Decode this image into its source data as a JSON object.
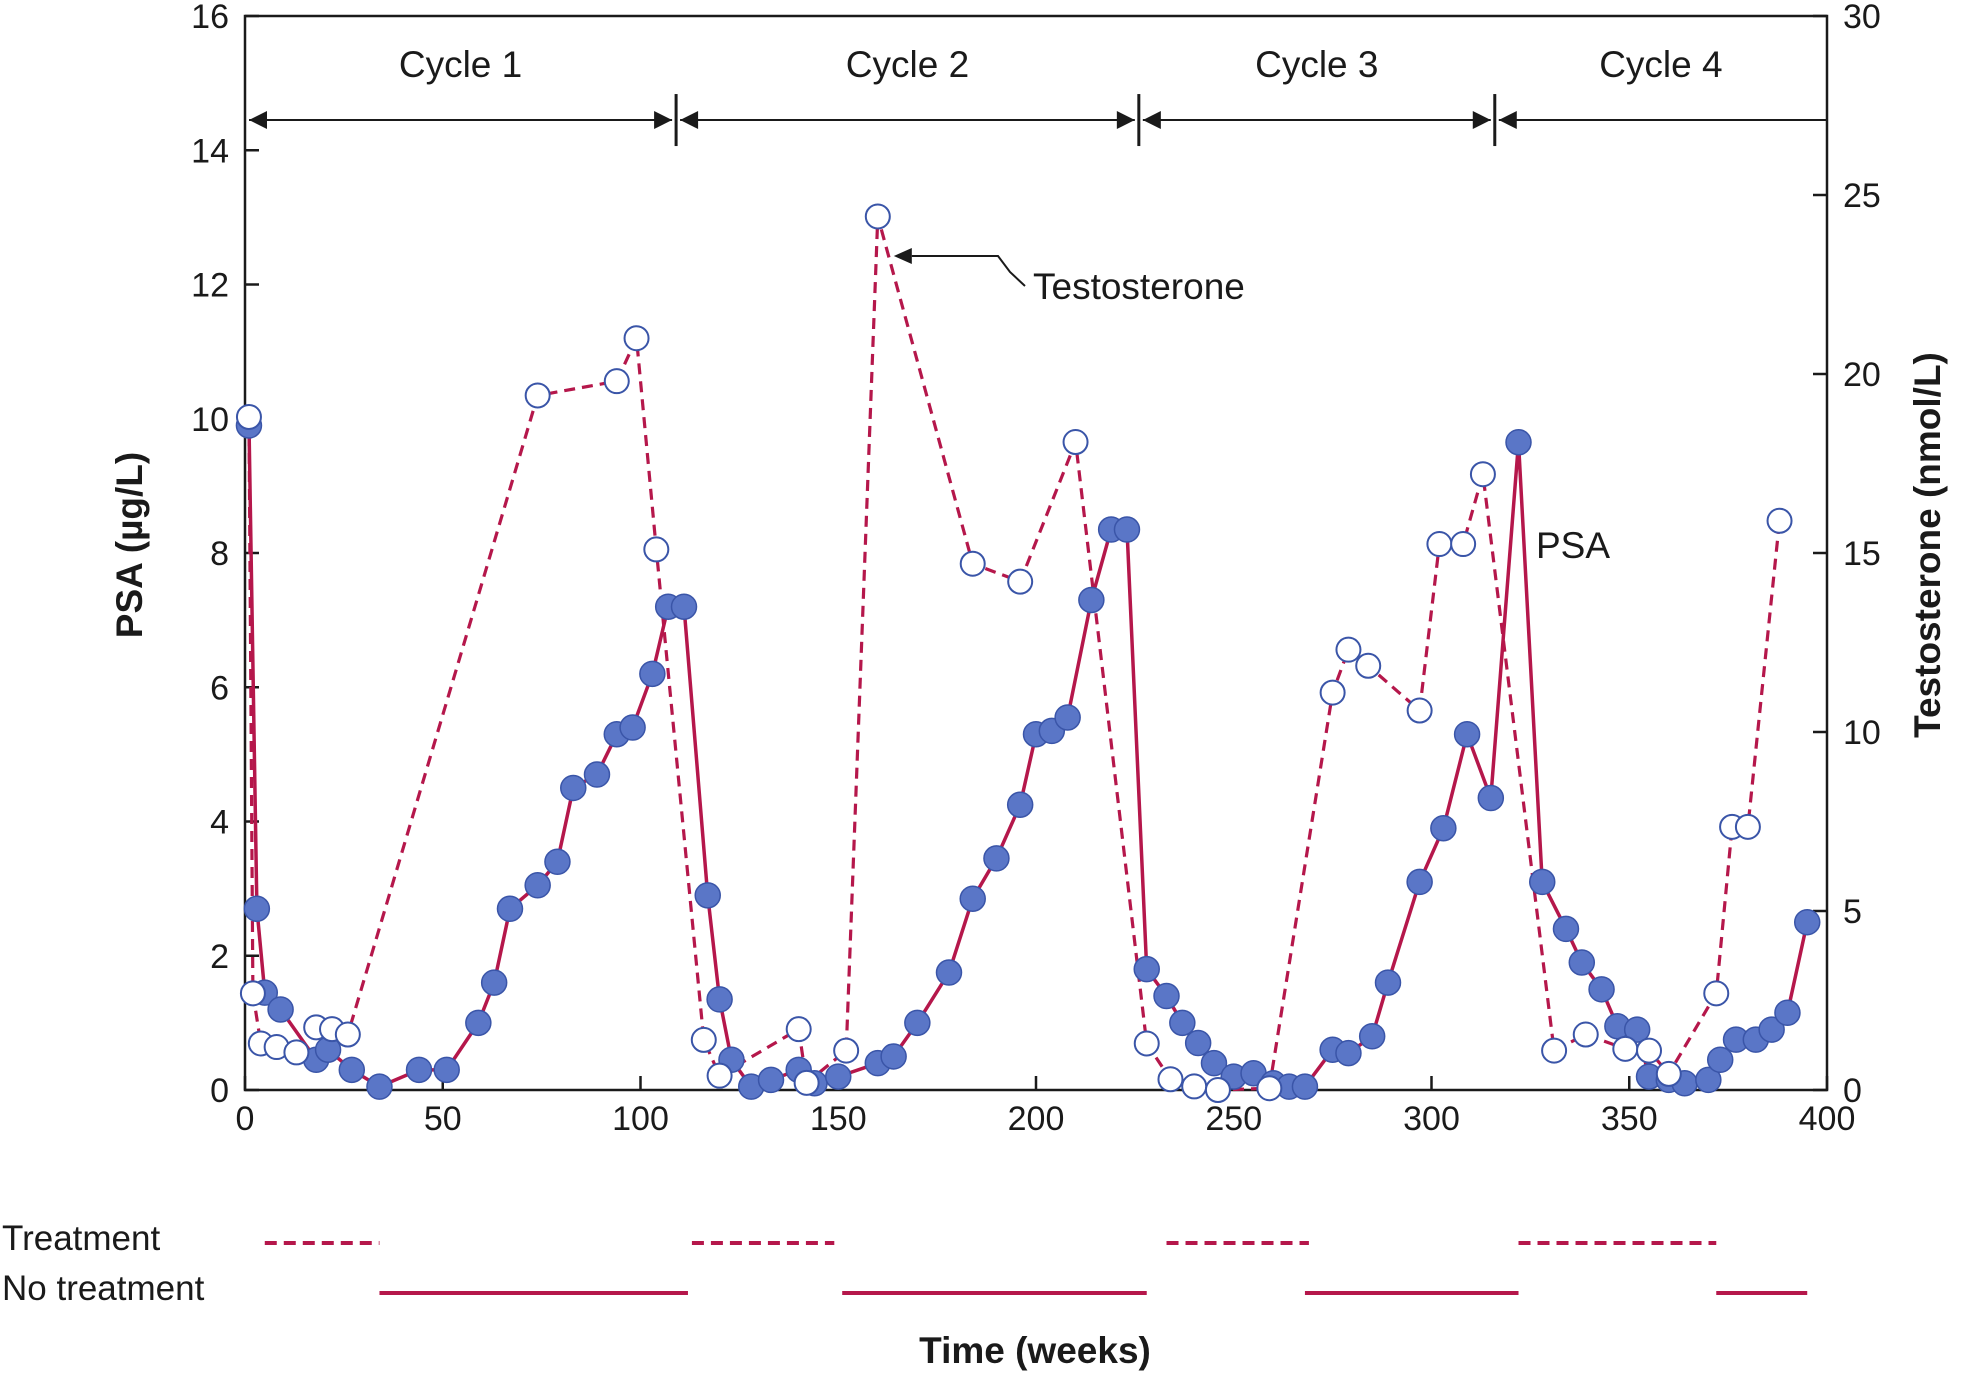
{
  "chart_data": {
    "type": "line",
    "title": "",
    "xlabel": "Time (weeks)",
    "ylabel_left": "PSA (µg/L)",
    "ylabel_right": "Testosterone (nmol/L)",
    "xlim": [
      0,
      400
    ],
    "ylim_left": [
      0,
      16
    ],
    "ylim_right": [
      0,
      30
    ],
    "x_ticks": [
      0,
      50,
      100,
      150,
      200,
      250,
      300,
      350,
      400
    ],
    "y_left_ticks": [
      0,
      2,
      4,
      6,
      8,
      10,
      12,
      14,
      16
    ],
    "y_right_ticks": [
      0,
      5,
      10,
      15,
      20,
      25,
      30
    ],
    "grid": false,
    "cycles": [
      {
        "label": "Cycle 1",
        "start": 0,
        "end": 109
      },
      {
        "label": "Cycle 2",
        "start": 109,
        "end": 226
      },
      {
        "label": "Cycle 3",
        "start": 226,
        "end": 316
      },
      {
        "label": "Cycle 4",
        "start": 316,
        "end": 400
      }
    ],
    "series": [
      {
        "name": "PSA",
        "axis": "left",
        "style": "solid",
        "marker": "filled-circle",
        "x": [
          1,
          3,
          5,
          9,
          18,
          21,
          27,
          34,
          44,
          51,
          59,
          63,
          67,
          74,
          79,
          83,
          89,
          94,
          98,
          103,
          107,
          111,
          117,
          120,
          123,
          128,
          133,
          140,
          144,
          150,
          160,
          164,
          170,
          178,
          184,
          190,
          196,
          200,
          204,
          208,
          214,
          219,
          223,
          228,
          233,
          237,
          241,
          245,
          250,
          255,
          260,
          264,
          268,
          275,
          279,
          285,
          289,
          297,
          303,
          309,
          315,
          322,
          328,
          334,
          338,
          343,
          347,
          352,
          355,
          360,
          364,
          370,
          373,
          377,
          382,
          386,
          390,
          395
        ],
        "y": [
          9.9,
          2.7,
          1.45,
          1.2,
          0.45,
          0.6,
          0.3,
          0.05,
          0.3,
          0.3,
          1.0,
          1.6,
          2.7,
          3.05,
          3.4,
          4.5,
          4.7,
          5.3,
          5.4,
          6.2,
          7.2,
          7.2,
          2.9,
          1.35,
          0.45,
          0.05,
          0.15,
          0.3,
          0.1,
          0.2,
          0.4,
          0.5,
          1.0,
          1.75,
          2.85,
          3.45,
          4.25,
          5.3,
          5.35,
          5.55,
          7.3,
          8.35,
          8.35,
          1.8,
          1.4,
          1.0,
          0.7,
          0.4,
          0.2,
          0.25,
          0.1,
          0.05,
          0.05,
          0.6,
          0.55,
          0.8,
          1.6,
          3.1,
          3.9,
          5.3,
          4.35,
          9.65,
          3.1,
          2.4,
          1.9,
          1.5,
          0.95,
          0.9,
          0.2,
          0.15,
          0.1,
          0.15,
          0.45,
          0.75,
          0.75,
          0.9,
          1.15,
          2.5
        ]
      },
      {
        "name": "Testosterone",
        "axis": "right",
        "style": "dashed",
        "marker": "open-circle",
        "x": [
          1,
          2,
          4,
          8,
          13,
          18,
          22,
          26,
          74,
          94,
          99,
          104,
          116,
          120,
          140,
          142,
          152,
          160,
          184,
          196,
          210,
          228,
          234,
          240,
          246,
          259,
          275,
          279,
          284,
          297,
          302,
          308,
          313,
          331,
          339,
          349,
          355,
          360,
          372,
          376,
          380,
          388
        ],
        "y": [
          18.8,
          2.7,
          1.3,
          1.2,
          1.05,
          1.75,
          1.7,
          1.55,
          19.4,
          19.8,
          21.0,
          15.1,
          1.4,
          0.4,
          1.7,
          0.2,
          1.1,
          24.4,
          14.7,
          14.2,
          18.1,
          1.3,
          0.3,
          0.1,
          0.0,
          0.05,
          11.1,
          12.3,
          11.85,
          10.6,
          15.25,
          15.25,
          17.2,
          1.1,
          1.55,
          1.15,
          1.1,
          0.45,
          2.7,
          7.35,
          7.35,
          15.9
        ]
      }
    ],
    "annotations": {
      "testosterone_label": "Testosterone",
      "psa_label": "PSA"
    },
    "legend": {
      "treatment_label": "Treatment",
      "no_treatment_label": "No treatment",
      "treatment_periods": [
        [
          5,
          34
        ],
        [
          113,
          149
        ],
        [
          233,
          269
        ],
        [
          322,
          372
        ]
      ],
      "no_treatment_periods": [
        [
          34,
          112
        ],
        [
          151,
          228
        ],
        [
          268,
          322
        ],
        [
          372,
          395
        ]
      ]
    },
    "colors": {
      "line": "#b5174b",
      "marker_fill": "#5a76c7",
      "marker_stroke": "#3a55a8",
      "open_marker_fill": "#ffffff",
      "axis": "#1a1a1a"
    }
  }
}
